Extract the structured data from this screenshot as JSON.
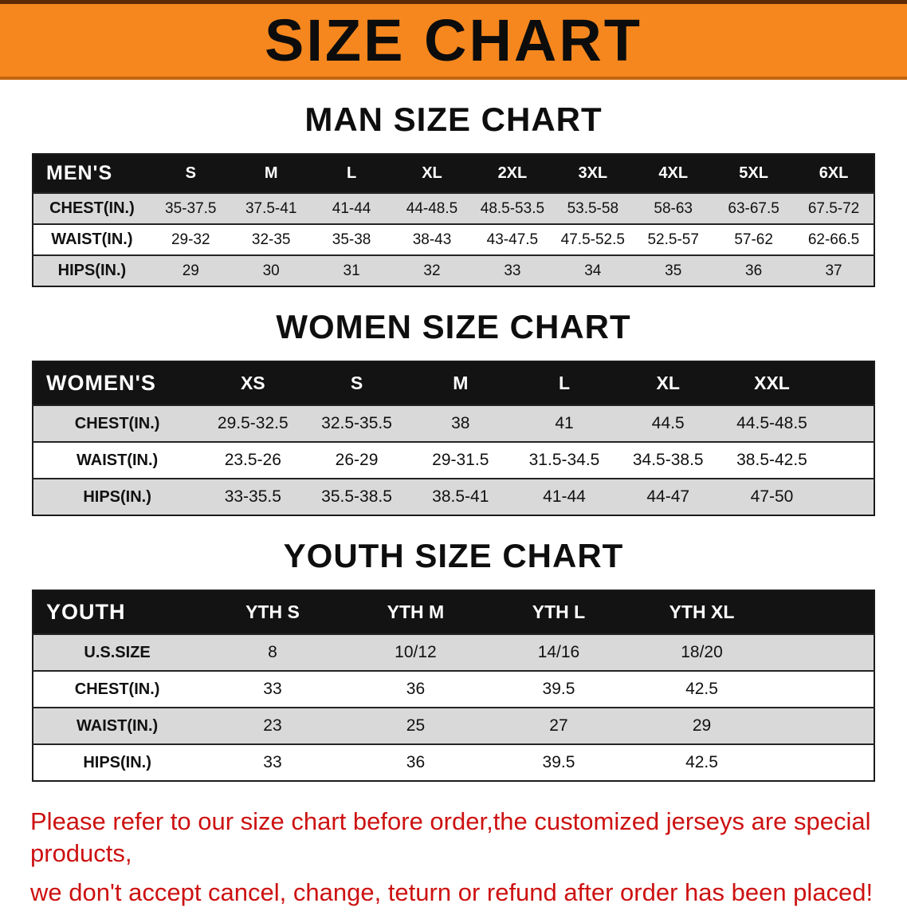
{
  "banner": {
    "title": "SIZE CHART"
  },
  "colors": {
    "banner_bg": "#f5871e",
    "banner_edge_top": "#5f2a06",
    "banner_edge_bottom": "#c4650f",
    "table_header_bg": "#131313",
    "row_shaded": "#d9d9d9",
    "row_plain": "#ffffff",
    "disclaimer_text": "#cd1111"
  },
  "men": {
    "heading": "MAN SIZE CHART",
    "table": {
      "header": [
        "MEN'S",
        "S",
        "M",
        "L",
        "XL",
        "2XL",
        "3XL",
        "4XL",
        "5XL",
        "6XL"
      ],
      "rows": [
        [
          "CHEST(IN.)",
          "35-37.5",
          "37.5-41",
          "41-44",
          "44-48.5",
          "48.5-53.5",
          "53.5-58",
          "58-63",
          "63-67.5",
          "67.5-72"
        ],
        [
          "WAIST(IN.)",
          "29-32",
          "32-35",
          "35-38",
          "38-43",
          "43-47.5",
          "47.5-52.5",
          "52.5-57",
          "57-62",
          "62-66.5"
        ],
        [
          "HIPS(IN.)",
          "29",
          "30",
          "31",
          "32",
          "33",
          "34",
          "35",
          "36",
          "37"
        ]
      ],
      "filler": false
    }
  },
  "women": {
    "heading": "WOMEN SIZE CHART",
    "table": {
      "header": [
        "WOMEN'S",
        "XS",
        "S",
        "M",
        "L",
        "XL",
        "XXL"
      ],
      "rows": [
        [
          "CHEST(IN.)",
          "29.5-32.5",
          "32.5-35.5",
          "38",
          "41",
          "44.5",
          "44.5-48.5"
        ],
        [
          "WAIST(IN.)",
          "23.5-26",
          "26-29",
          "29-31.5",
          "31.5-34.5",
          "34.5-38.5",
          "38.5-42.5"
        ],
        [
          "HIPS(IN.)",
          "33-35.5",
          "35.5-38.5",
          "38.5-41",
          "41-44",
          "44-47",
          "47-50"
        ]
      ],
      "filler": true
    }
  },
  "youth": {
    "heading": "YOUTH SIZE CHART",
    "table": {
      "header": [
        "YOUTH",
        "YTH S",
        "YTH M",
        "YTH L",
        "YTH XL"
      ],
      "rows": [
        [
          "U.S.SIZE",
          "8",
          "10/12",
          "14/16",
          "18/20"
        ],
        [
          "CHEST(IN.)",
          "33",
          "36",
          "39.5",
          "42.5"
        ],
        [
          "WAIST(IN.)",
          "23",
          "25",
          "27",
          "29"
        ],
        [
          "HIPS(IN.)",
          "33",
          "36",
          "39.5",
          "42.5"
        ]
      ],
      "filler": true
    }
  },
  "disclaimer": {
    "line1": "Please refer to our size chart before order,the customized jerseys are special products,",
    "line2": "we don't accept cancel, change, teturn or refund after order has been placed!"
  }
}
